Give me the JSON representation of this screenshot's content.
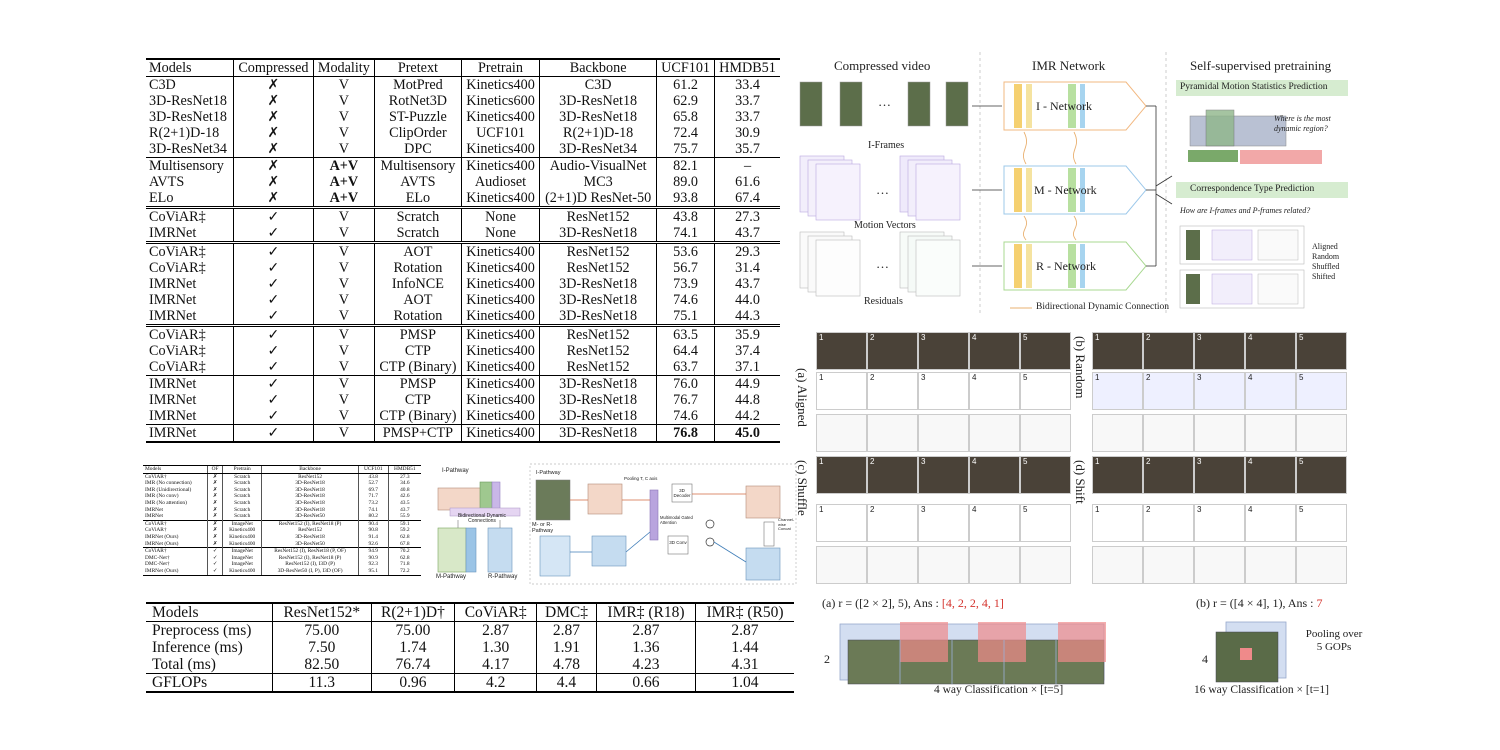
{
  "main_table": {
    "headers": [
      "Models",
      "Compressed",
      "Modality",
      "Pretext",
      "Pretrain",
      "Backbone",
      "UCF101",
      "HMDB51"
    ],
    "groups": [
      {
        "sep": "none",
        "rows": [
          [
            "C3D",
            "✗",
            "V",
            "MotPred",
            "Kinetics400",
            "C3D",
            "61.2",
            "33.4"
          ],
          [
            "3D-ResNet18",
            "✗",
            "V",
            "RotNet3D",
            "Kinetics600",
            "3D-ResNet18",
            "62.9",
            "33.7"
          ],
          [
            "3D-ResNet18",
            "✗",
            "V",
            "ST-Puzzle",
            "Kinetics400",
            "3D-ResNet18",
            "65.8",
            "33.7"
          ],
          [
            "R(2+1)D-18",
            "✗",
            "V",
            "ClipOrder",
            "UCF101",
            "R(2+1)D-18",
            "72.4",
            "30.9"
          ],
          [
            "3D-ResNet34",
            "✗",
            "V",
            "DPC",
            "Kinetics400",
            "3D-ResNet34",
            "75.7",
            "35.7"
          ]
        ]
      },
      {
        "sep": "single",
        "rows": [
          [
            "Multisensory",
            "✗",
            "A+V",
            "Multisensory",
            "Kinetics400",
            "Audio-VisualNet",
            "82.1",
            "–"
          ],
          [
            "AVTS",
            "✗",
            "A+V",
            "AVTS",
            "Audioset",
            "MC3",
            "89.0",
            "61.6"
          ],
          [
            "ELo",
            "✗",
            "A+V",
            "ELo",
            "Kinetics400",
            "(2+1)D ResNet-50",
            "93.8",
            "67.4"
          ]
        ]
      },
      {
        "sep": "double",
        "rows": [
          [
            "CoViAR‡",
            "✓",
            "V",
            "Scratch",
            "None",
            "ResNet152",
            "43.8",
            "27.3"
          ],
          [
            "IMRNet",
            "✓",
            "V",
            "Scratch",
            "None",
            "3D-ResNet18",
            "74.1",
            "43.7"
          ]
        ]
      },
      {
        "sep": "double",
        "rows": [
          [
            "CoViAR‡",
            "✓",
            "V",
            "AOT",
            "Kinetics400",
            "ResNet152",
            "53.6",
            "29.3"
          ],
          [
            "CoViAR‡",
            "✓",
            "V",
            "Rotation",
            "Kinetics400",
            "ResNet152",
            "56.7",
            "31.4"
          ],
          [
            "IMRNet",
            "✓",
            "V",
            "InfoNCE",
            "Kinetics400",
            "3D-ResNet18",
            "73.9",
            "43.7"
          ],
          [
            "IMRNet",
            "✓",
            "V",
            "AOT",
            "Kinetics400",
            "3D-ResNet18",
            "74.6",
            "44.0"
          ],
          [
            "IMRNet",
            "✓",
            "V",
            "Rotation",
            "Kinetics400",
            "3D-ResNet18",
            "75.1",
            "44.3"
          ]
        ]
      },
      {
        "sep": "double",
        "rows": [
          [
            "CoViAR‡",
            "✓",
            "V",
            "PMSP",
            "Kinetics400",
            "ResNet152",
            "63.5",
            "35.9"
          ],
          [
            "CoViAR‡",
            "✓",
            "V",
            "CTP",
            "Kinetics400",
            "ResNet152",
            "64.4",
            "37.4"
          ],
          [
            "CoViAR‡",
            "✓",
            "V",
            "CTP (Binary)",
            "Kinetics400",
            "ResNet152",
            "63.7",
            "37.1"
          ]
        ]
      },
      {
        "sep": "single",
        "rows": [
          [
            "IMRNet",
            "✓",
            "V",
            "PMSP",
            "Kinetics400",
            "3D-ResNet18",
            "76.0",
            "44.9"
          ],
          [
            "IMRNet",
            "✓",
            "V",
            "CTP",
            "Kinetics400",
            "3D-ResNet18",
            "76.7",
            "44.8"
          ],
          [
            "IMRNet",
            "✓",
            "V",
            "CTP (Binary)",
            "Kinetics400",
            "3D-ResNet18",
            "74.6",
            "44.2"
          ]
        ]
      },
      {
        "sep": "single",
        "rows": [
          [
            "IMRNet",
            "✓",
            "V",
            "PMSP+CTP",
            "Kinetics400",
            "3D-ResNet18",
            "76.8",
            "45.0"
          ]
        ]
      }
    ]
  },
  "small_table": {
    "headers": [
      "Models",
      "OF",
      "Pretrain",
      "Backbone",
      "UCF101",
      "HMDB51"
    ],
    "groups": [
      {
        "sep": "none",
        "rows": [
          [
            "CoViAR†",
            "✗",
            "Scratch",
            "ResNet152",
            "43.8",
            "27.3"
          ],
          [
            "IMR (No connection)",
            "✗",
            "Scratch",
            "3D-ResNet18",
            "52.7",
            "34.6"
          ],
          [
            "IMR (Unidirectional)",
            "✗",
            "Scratch",
            "3D-ResNet18",
            "69.7",
            "40.8"
          ],
          [
            "IMR (No conv)",
            "✗",
            "Scratch",
            "3D-ResNet18",
            "71.7",
            "42.6"
          ],
          [
            "IMR (No attention)",
            "✗",
            "Scratch",
            "3D-ResNet18",
            "73.2",
            "43.5"
          ],
          [
            "IMRNet",
            "✗",
            "Scratch",
            "3D-ResNet18",
            "74.1",
            "43.7"
          ],
          [
            "IMRNet",
            "✗",
            "Scratch",
            "3D-ResNet50",
            "80.2",
            "55.9"
          ]
        ]
      },
      {
        "sep": "line",
        "rows": [
          [
            "CoViAR†",
            "✗",
            "ImageNet",
            "ResNet152 (I), ResNet18 (P)",
            "90.4",
            "59.1"
          ],
          [
            "CoViAR†",
            "✗",
            "Kinetics400",
            "ResNet152",
            "90.8",
            "59.2"
          ],
          [
            "IMRNet (Ours)",
            "✗",
            "Kinetics400",
            "3D-ResNet18",
            "91.4",
            "62.8"
          ],
          [
            "IMRNet (Ours)",
            "✗",
            "Kinetics400",
            "3D-ResNet50",
            "92.6",
            "67.8"
          ]
        ]
      },
      {
        "sep": "line",
        "rows": [
          [
            "CoViAR†",
            "✓",
            "ImageNet",
            "ResNet152 (I), ResNet18 (P, OF)",
            "94.9",
            "70.2"
          ],
          [
            "DMC-Net†",
            "✓",
            "ImageNet",
            "ResNet152 (I), ResNet18 (P)",
            "90.9",
            "62.8"
          ],
          [
            "DMC-Net†",
            "✓",
            "ImageNet",
            "ResNet152 (I), I3D (P)",
            "92.3",
            "71.8"
          ],
          [
            "IMRNet (Ours)",
            "✓",
            "Kinetics400",
            "3D-ResNet50 (I, P), I3D (OF)",
            "95.1",
            "72.2"
          ]
        ]
      }
    ]
  },
  "bottom_table": {
    "headers": [
      "Models",
      "ResNet152*",
      "R(2+1)D†",
      "CoViAR‡",
      "DMC‡",
      "IMR‡ (R18)",
      "IMR‡ (R50)"
    ],
    "rows": [
      [
        "Preprocess (ms)",
        "75.00",
        "75.00",
        "2.87",
        "2.87",
        "2.87",
        "2.87"
      ],
      [
        "Inference (ms)",
        "7.50",
        "1.74",
        "1.30",
        "1.91",
        "1.36",
        "1.44"
      ],
      [
        "Total (ms)",
        "82.50",
        "76.74",
        "4.17",
        "4.78",
        "4.23",
        "4.31"
      ],
      [
        "GFLOPs",
        "11.3",
        "0.96",
        "4.2",
        "4.4",
        "0.66",
        "1.04"
      ]
    ]
  },
  "arch_figure": {
    "compressed_video": "Compressed video",
    "imr_network": "IMR Network",
    "ssp": "Self-supervised pretraining",
    "iframes": "I-Frames",
    "motion_vectors": "Motion Vectors",
    "residuals": "Residuals",
    "ellipsis": "…",
    "i_net": "I - Network",
    "m_net": "M - Network",
    "r_net": "R - Network",
    "bidir": "Bidirectional Dynamic Connection",
    "pmsp": "Pyramidal Motion Statistics Prediction",
    "where": "Where is the most dynamic region?",
    "ctp": "Correspondence Type Prediction",
    "how": "How are I-frames and P-frames related?",
    "types": [
      "Aligned",
      "Random",
      "Shuffled",
      "Shifted"
    ]
  },
  "pathway_figure": {
    "i_pathway": "I-Pathway",
    "m_pathway": "M-Pathway",
    "r_pathway": "R-Pathway",
    "bdc": "Bidirectional Dynamic Connections",
    "i_pathway2": "I-Pathway",
    "mr_pathway": "M- or R-Pathway",
    "pooling": "Pooling T, C axis",
    "decoder": "3D Decoder",
    "mgaf": "Multimodal Gated Attention",
    "conv3d": "3D Conv",
    "concat": "Channel-wise Concat"
  },
  "ctp_examples": {
    "aligned": "(a) Aligned",
    "random": "(b) Random",
    "shuffle": "(c) Shuffle",
    "shift": "(d) Shift",
    "nums": [
      "1",
      "2",
      "3",
      "4",
      "5"
    ]
  },
  "pmsp_examples": {
    "a_label": "(a)  r = ([2 × 2], 5),  Ans  : ",
    "a_ans": "[4, 2, 2, 4, 1]",
    "b_label": "(b)  r = ([4 × 4], 1),  Ans  : ",
    "b_ans": "7",
    "a_caption": "4 way Classification × [t=5]",
    "b_caption": "16 way Classification × [t=1]",
    "a_side": "2",
    "b_side": "4",
    "pool_note": "Pooling over 5 GOPs"
  }
}
